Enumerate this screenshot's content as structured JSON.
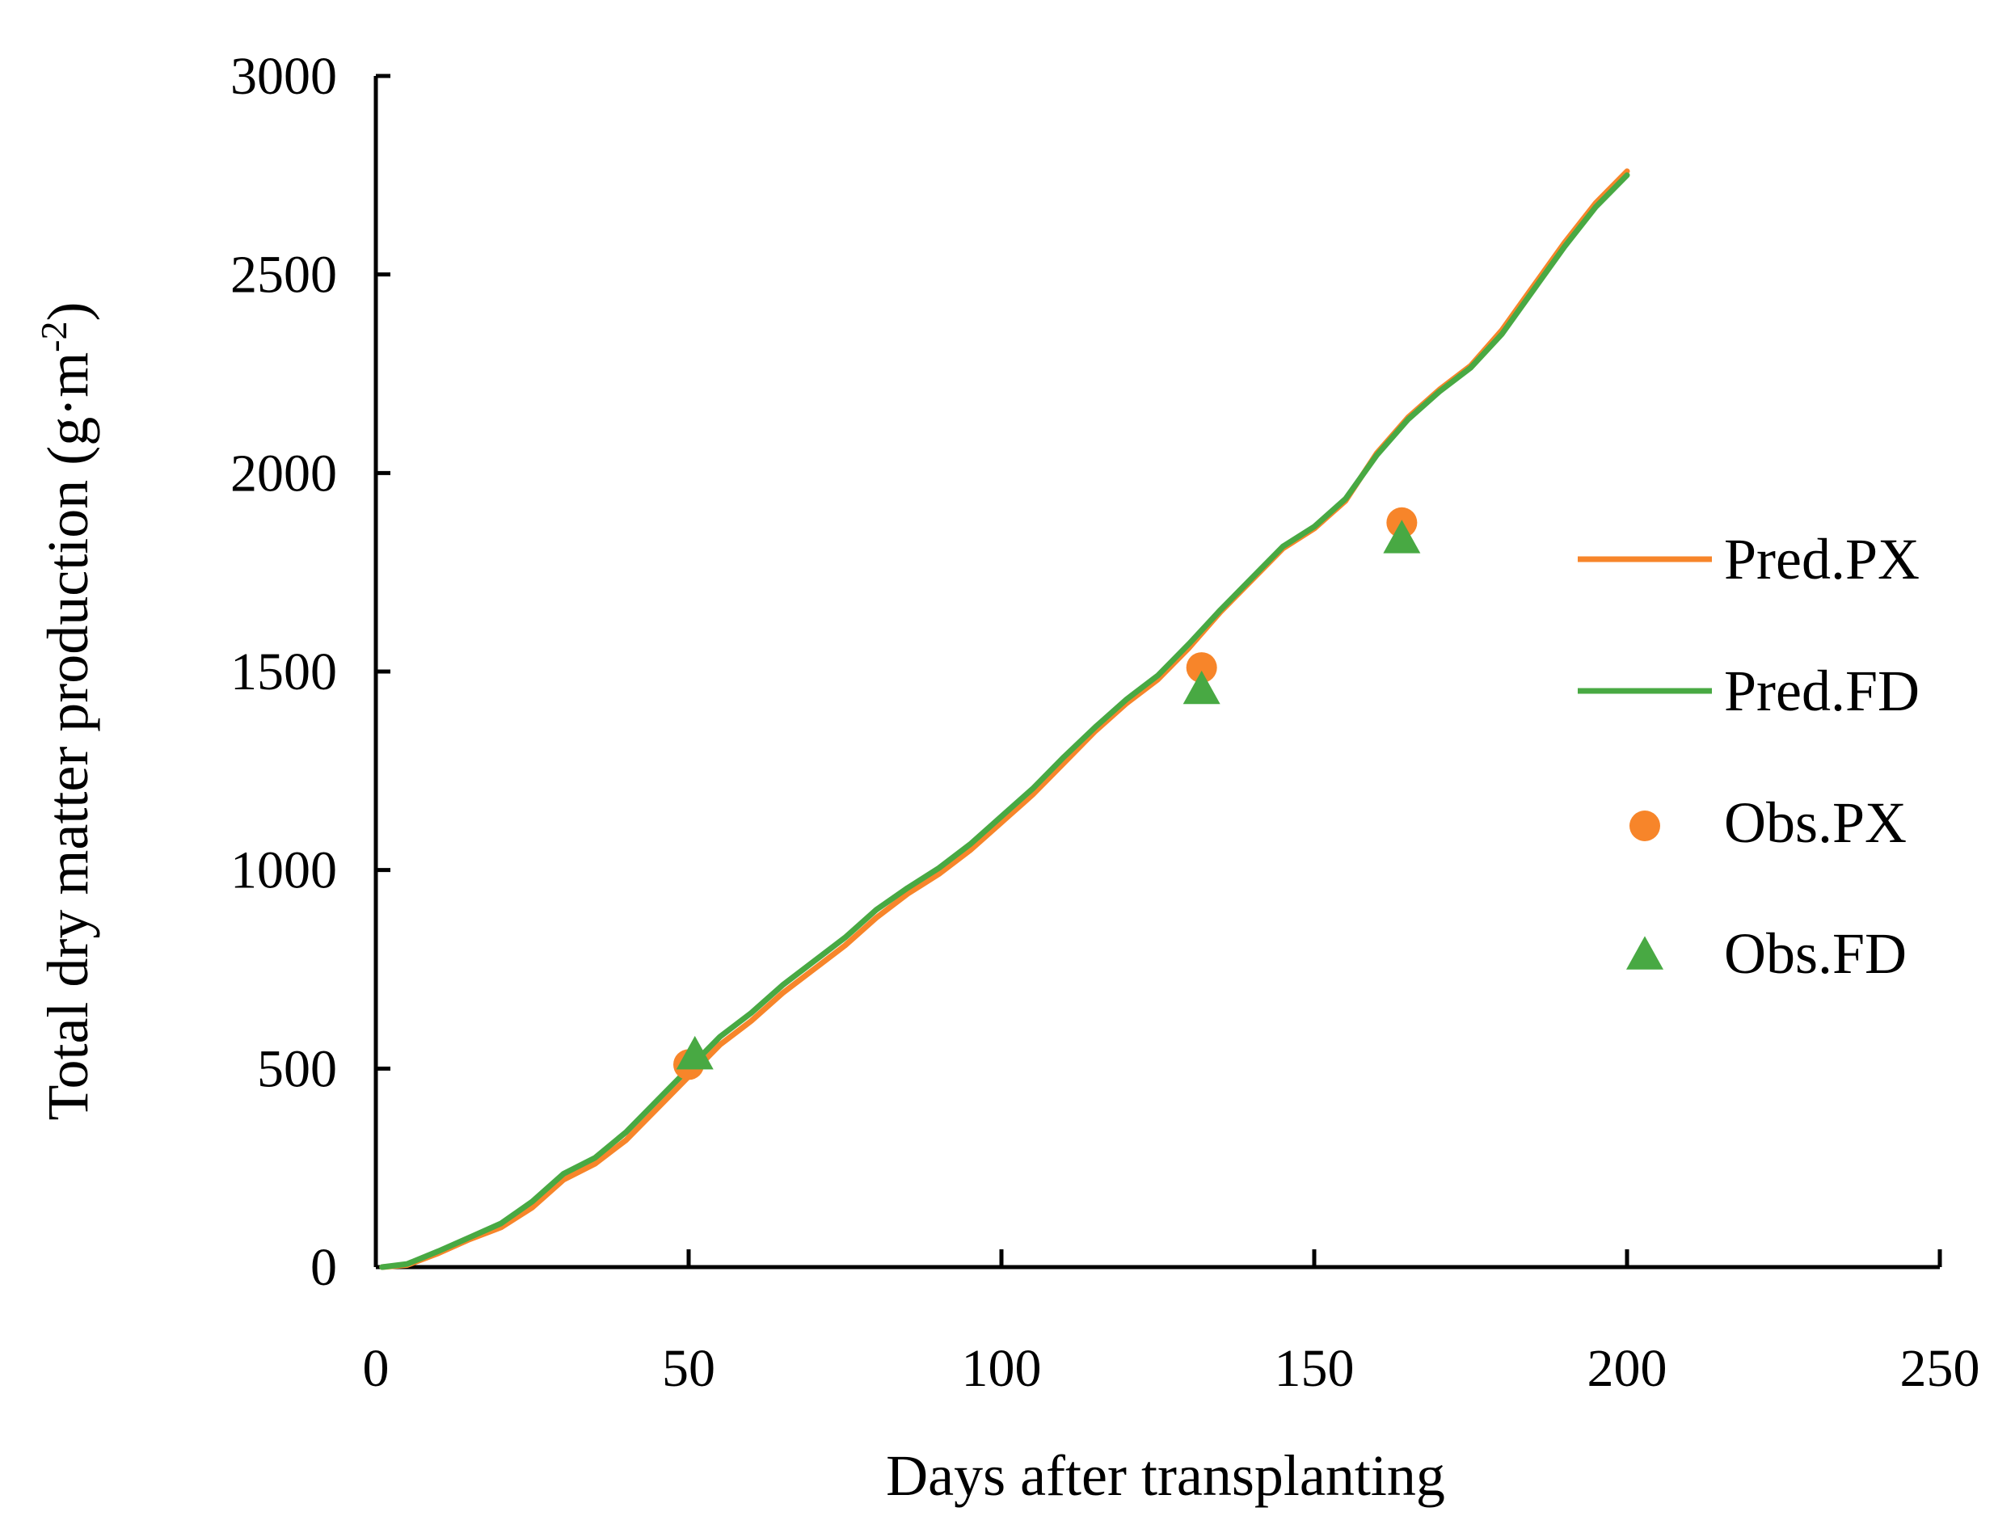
{
  "chart_data": {
    "type": "line",
    "title": "",
    "xlabel": "Days after transplanting",
    "ylabel_main": "Total dry matter production (g·m",
    "ylabel_sup": "-2",
    "ylabel_close": ")",
    "xlim": [
      0,
      250
    ],
    "ylim": [
      0,
      3000
    ],
    "xticks": [
      0,
      50,
      100,
      150,
      200,
      250
    ],
    "yticks": [
      0,
      500,
      1000,
      1500,
      2000,
      2500,
      3000
    ],
    "grid": false,
    "legend_position": "right",
    "series": [
      {
        "name": "Pred.PX",
        "kind": "line",
        "color": "#f7852a",
        "x": [
          1,
          5,
          10,
          15,
          20,
          25,
          30,
          35,
          40,
          45,
          50,
          55,
          60,
          65,
          70,
          75,
          80,
          85,
          90,
          95,
          100,
          105,
          110,
          115,
          120,
          125,
          130,
          135,
          140,
          145,
          150,
          155,
          160,
          165,
          170,
          175,
          180,
          185,
          190,
          195,
          200
        ],
        "y": [
          0,
          5,
          35,
          70,
          100,
          150,
          220,
          260,
          320,
          400,
          480,
          560,
          620,
          690,
          750,
          810,
          880,
          940,
          990,
          1050,
          1120,
          1190,
          1270,
          1350,
          1420,
          1480,
          1560,
          1650,
          1730,
          1810,
          1860,
          1930,
          2050,
          2140,
          2210,
          2270,
          2360,
          2470,
          2580,
          2680,
          2760
        ]
      },
      {
        "name": "Pred.FD",
        "kind": "line",
        "color": "#48a943",
        "x": [
          1,
          5,
          10,
          15,
          20,
          25,
          30,
          35,
          40,
          45,
          50,
          55,
          60,
          65,
          70,
          75,
          80,
          85,
          90,
          95,
          100,
          105,
          110,
          115,
          120,
          125,
          130,
          135,
          140,
          145,
          150,
          155,
          160,
          165,
          170,
          175,
          180,
          185,
          190,
          195,
          200
        ],
        "y": [
          0,
          8,
          40,
          75,
          110,
          165,
          235,
          275,
          340,
          420,
          500,
          580,
          640,
          710,
          770,
          830,
          900,
          955,
          1005,
          1065,
          1135,
          1205,
          1285,
          1360,
          1430,
          1490,
          1570,
          1655,
          1735,
          1815,
          1865,
          1935,
          2045,
          2135,
          2205,
          2265,
          2350,
          2460,
          2570,
          2670,
          2750
        ]
      },
      {
        "name": "Obs.PX",
        "kind": "scatter",
        "marker": "circle",
        "color": "#f7852a",
        "x": [
          50,
          132,
          164
        ],
        "y": [
          510,
          1510,
          1875
        ]
      },
      {
        "name": "Obs.FD",
        "kind": "scatter",
        "marker": "triangle",
        "color": "#48a943",
        "x": [
          51,
          132,
          164
        ],
        "y": [
          530,
          1450,
          1830
        ]
      }
    ]
  }
}
